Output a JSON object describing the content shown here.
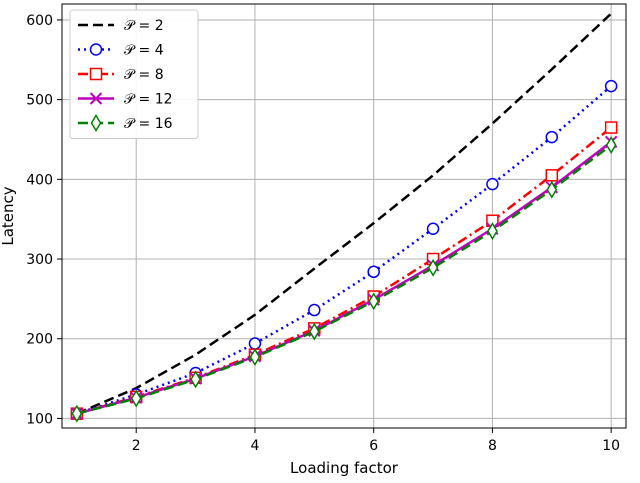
{
  "chart_data": {
    "type": "line",
    "xlabel": "Loading factor",
    "ylabel": "Latency",
    "xlim": [
      0.75,
      10.25
    ],
    "ylim": [
      88,
      620
    ],
    "xticks": [
      2,
      4,
      6,
      8,
      10
    ],
    "yticks": [
      100,
      200,
      300,
      400,
      500,
      600
    ],
    "grid": true,
    "legend_position": "top-left",
    "x": [
      1,
      2,
      3,
      4,
      5,
      6,
      7,
      8,
      9,
      10
    ],
    "series": [
      {
        "name": "𝒫 = 2",
        "color": "#000000",
        "dash": "dashed",
        "marker": "none",
        "values": [
          106,
          138,
          180,
          230,
          288,
          345,
          405,
          470,
          538,
          608
        ]
      },
      {
        "name": "𝒫 = 4",
        "color": "#0000ff",
        "dash": "dotted",
        "marker": "circle",
        "values": [
          106,
          130,
          157,
          194,
          236,
          284,
          338,
          394,
          453,
          517
        ]
      },
      {
        "name": "𝒫 = 8",
        "color": "#ff0000",
        "dash": "dashdot",
        "marker": "square",
        "values": [
          106,
          127,
          151,
          180,
          213,
          253,
          300,
          348,
          405,
          465
        ]
      },
      {
        "name": "𝒫 = 12",
        "color": "#bf00bf",
        "dash": "solid",
        "marker": "x",
        "values": [
          106,
          126,
          150,
          178,
          210,
          249,
          292,
          338,
          390,
          447
        ]
      },
      {
        "name": "𝒫 = 16",
        "color": "#008000",
        "dash": "dashed",
        "marker": "diamond",
        "values": [
          106,
          125,
          149,
          177,
          209,
          247,
          289,
          335,
          387,
          443
        ]
      }
    ]
  }
}
